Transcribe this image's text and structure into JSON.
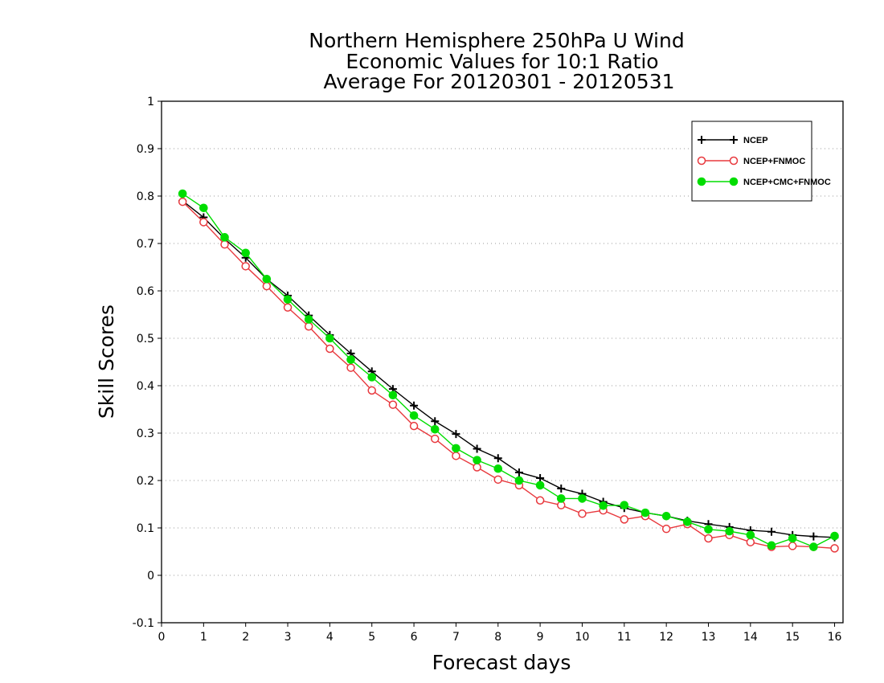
{
  "chart_data": {
    "type": "line",
    "title": [
      "Northern Hemisphere 250hPa U Wind",
      "Economic Values for 10:1 Ratio",
      "Average For 20120301 - 20120531"
    ],
    "xlabel": "Forecast days",
    "ylabel": "Skill Scores",
    "xlim": [
      0,
      16.2
    ],
    "ylim": [
      -0.1,
      1
    ],
    "xticks": [
      "0",
      "1",
      "2",
      "3",
      "4",
      "5",
      "6",
      "7",
      "8",
      "9",
      "10",
      "11",
      "12",
      "13",
      "14",
      "15",
      "16"
    ],
    "yticks": [
      "-0.1",
      "0",
      "0.1",
      "0.2",
      "0.3",
      "0.4",
      "0.5",
      "0.6",
      "0.7",
      "0.8",
      "0.9",
      "1"
    ],
    "grid": "horizontal dotted",
    "legend_position": "top-right",
    "x": [
      0.5,
      1,
      1.5,
      2,
      2.5,
      3,
      3.5,
      4,
      4.5,
      5,
      5.5,
      6,
      6.5,
      7,
      7.5,
      8,
      8.5,
      9,
      9.5,
      10,
      10.5,
      11,
      11.5,
      12,
      12.5,
      13,
      13.5,
      14,
      14.5,
      15,
      15.5,
      16
    ],
    "series": [
      {
        "name": "NCEP",
        "color": "#000000",
        "marker": "plus",
        "values": [
          0.79,
          0.755,
          0.71,
          0.67,
          0.625,
          0.59,
          0.548,
          0.507,
          0.468,
          0.43,
          0.393,
          0.358,
          0.325,
          0.298,
          0.267,
          0.247,
          0.217,
          0.205,
          0.183,
          0.172,
          0.155,
          0.142,
          0.132,
          0.125,
          0.115,
          0.108,
          0.102,
          0.095,
          0.092,
          0.085,
          0.082,
          0.08
        ]
      },
      {
        "name": "NCEP+FNMOC",
        "color": "#e8383d",
        "marker": "open-circle",
        "values": [
          0.788,
          0.745,
          0.698,
          0.652,
          0.61,
          0.565,
          0.525,
          0.478,
          0.438,
          0.39,
          0.36,
          0.315,
          0.288,
          0.252,
          0.228,
          0.202,
          0.19,
          0.158,
          0.148,
          0.13,
          0.137,
          0.118,
          0.125,
          0.098,
          0.108,
          0.078,
          0.085,
          0.07,
          0.06,
          0.062,
          0.06,
          0.057
        ]
      },
      {
        "name": "NCEP+CMC+FNMOC",
        "color": "#00dd00",
        "marker": "filled-circle",
        "values": [
          0.805,
          0.775,
          0.713,
          0.68,
          0.625,
          0.582,
          0.54,
          0.5,
          0.455,
          0.418,
          0.38,
          0.337,
          0.308,
          0.268,
          0.243,
          0.225,
          0.2,
          0.19,
          0.162,
          0.162,
          0.147,
          0.148,
          0.132,
          0.125,
          0.113,
          0.097,
          0.093,
          0.085,
          0.063,
          0.078,
          0.06,
          0.083
        ]
      }
    ]
  }
}
